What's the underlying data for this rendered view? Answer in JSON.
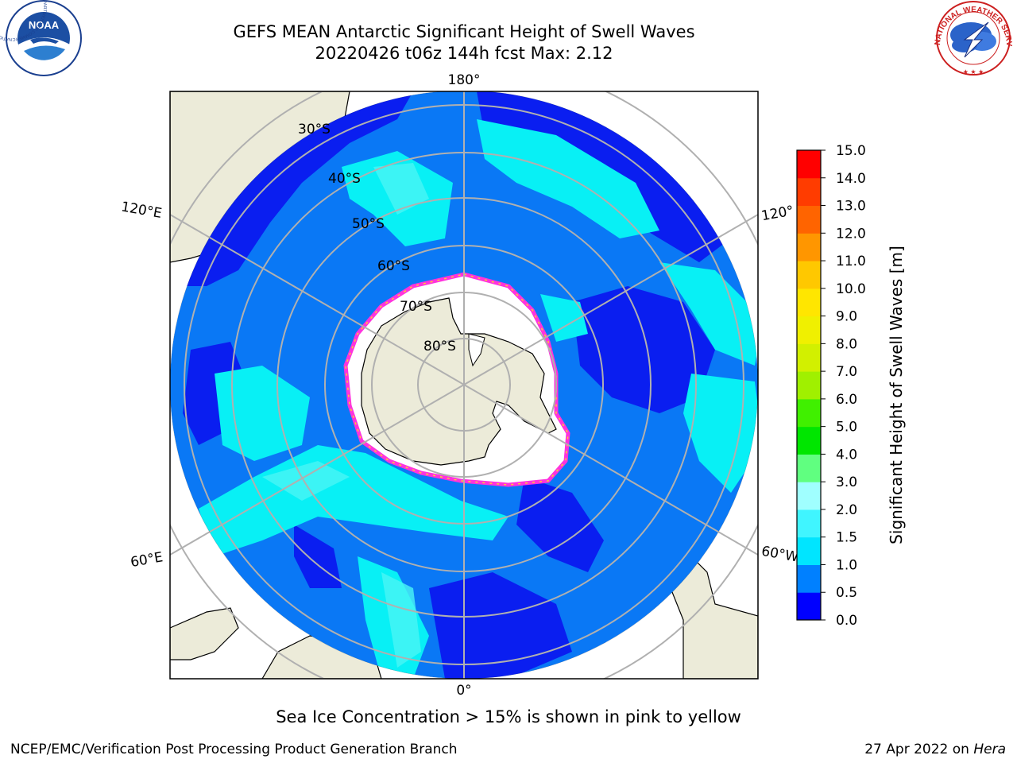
{
  "title": {
    "line1": "GEFS MEAN Antarctic Significant Height of Swell Waves",
    "line2": "20220426 t06z 144h fcst   Max: 2.12"
  },
  "map": {
    "projection": "south-polar-stereographic",
    "lon_labels": {
      "top": "180°",
      "bottom": "0°",
      "left_upper": "120°E",
      "left_lower": "60°E",
      "right_upper": "120°",
      "right_lower": "60°W"
    },
    "lat_labels": [
      "30°S",
      "40°S",
      "50°S",
      "60°S",
      "70°S",
      "80°S"
    ],
    "colors": {
      "land": "#ecebd9",
      "ocean_low": "#0a1ef5",
      "ocean_mid": "#0a7cf5",
      "ocean_high": "#08f0f5",
      "ocean_higher": "#4af5f5",
      "ice_white": "#ffffff",
      "ice_edge": "#ff33dd",
      "grid": "#aaaaaa"
    }
  },
  "colorbar": {
    "label": "Significant Height of Swell Waves [m]",
    "ticks": [
      "0.0",
      "0.5",
      "1.0",
      "1.5",
      "2.0",
      "3.0",
      "4.0",
      "5.0",
      "6.0",
      "7.0",
      "8.0",
      "9.0",
      "10.0",
      "11.0",
      "12.0",
      "13.0",
      "14.0",
      "15.0"
    ],
    "colors": [
      "#0000ff",
      "#0080ff",
      "#00e5ff",
      "#40f5ff",
      "#a0ffff",
      "#60ff80",
      "#00e600",
      "#40f000",
      "#a0f000",
      "#d2f000",
      "#f0f000",
      "#ffe600",
      "#ffc800",
      "#ff9600",
      "#ff6400",
      "#ff3c00",
      "#ff0000"
    ]
  },
  "subtitle": "Sea Ice Concentration > 15% is shown in pink to yellow",
  "footer": {
    "left": "NCEP/EMC/Verification Post Processing Product Generation Branch",
    "right_prefix": "27 Apr 2022 on ",
    "right_italic": "Hera"
  },
  "logos": {
    "noaa": {
      "text": "NOAA",
      "ring_text": "NATIONAL OCEANIC AND ATMOSPHERIC ADMINISTRATION · U.S. DEPARTMENT OF COMMERCE"
    },
    "nws": {
      "ring_text": "NATIONAL WEATHER SERVICE"
    }
  }
}
